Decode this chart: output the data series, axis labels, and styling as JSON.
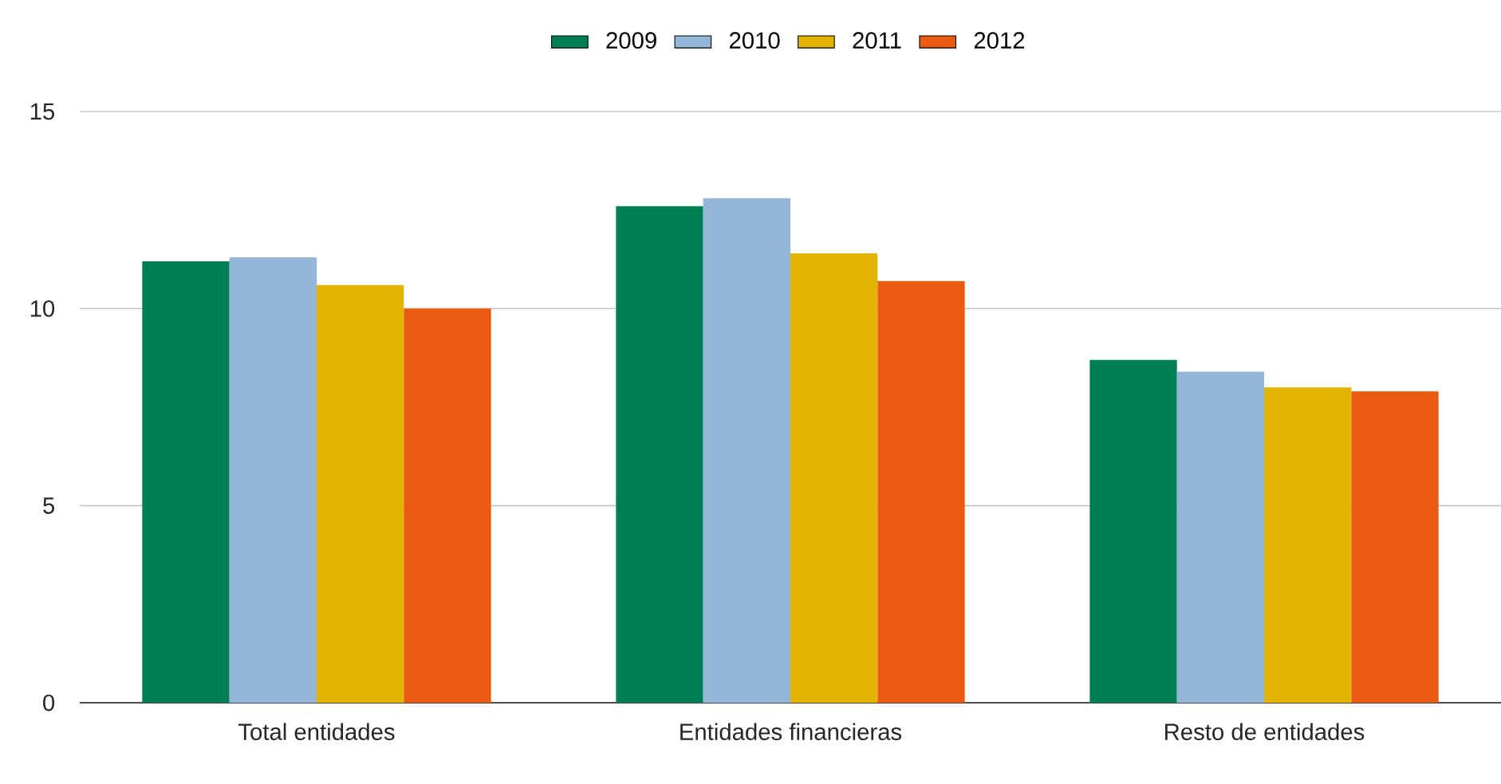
{
  "chart_data": {
    "type": "bar",
    "categories": [
      "Total entidades",
      "Entidades financieras",
      "Resto de entidades"
    ],
    "series": [
      {
        "name": "2009",
        "color": "#007f56",
        "values": [
          11.2,
          12.6,
          8.7
        ]
      },
      {
        "name": "2010",
        "color": "#94b6d9",
        "values": [
          11.3,
          12.8,
          8.4
        ]
      },
      {
        "name": "2011",
        "color": "#e0b400",
        "values": [
          10.6,
          11.4,
          8.0
        ]
      },
      {
        "name": "2012",
        "color": "#e85b10",
        "values": [
          10.0,
          10.7,
          7.9
        ]
      }
    ],
    "ylim": [
      0,
      15
    ],
    "yticks": [
      0,
      5,
      10,
      15
    ],
    "grid": "y",
    "legend": "top"
  }
}
